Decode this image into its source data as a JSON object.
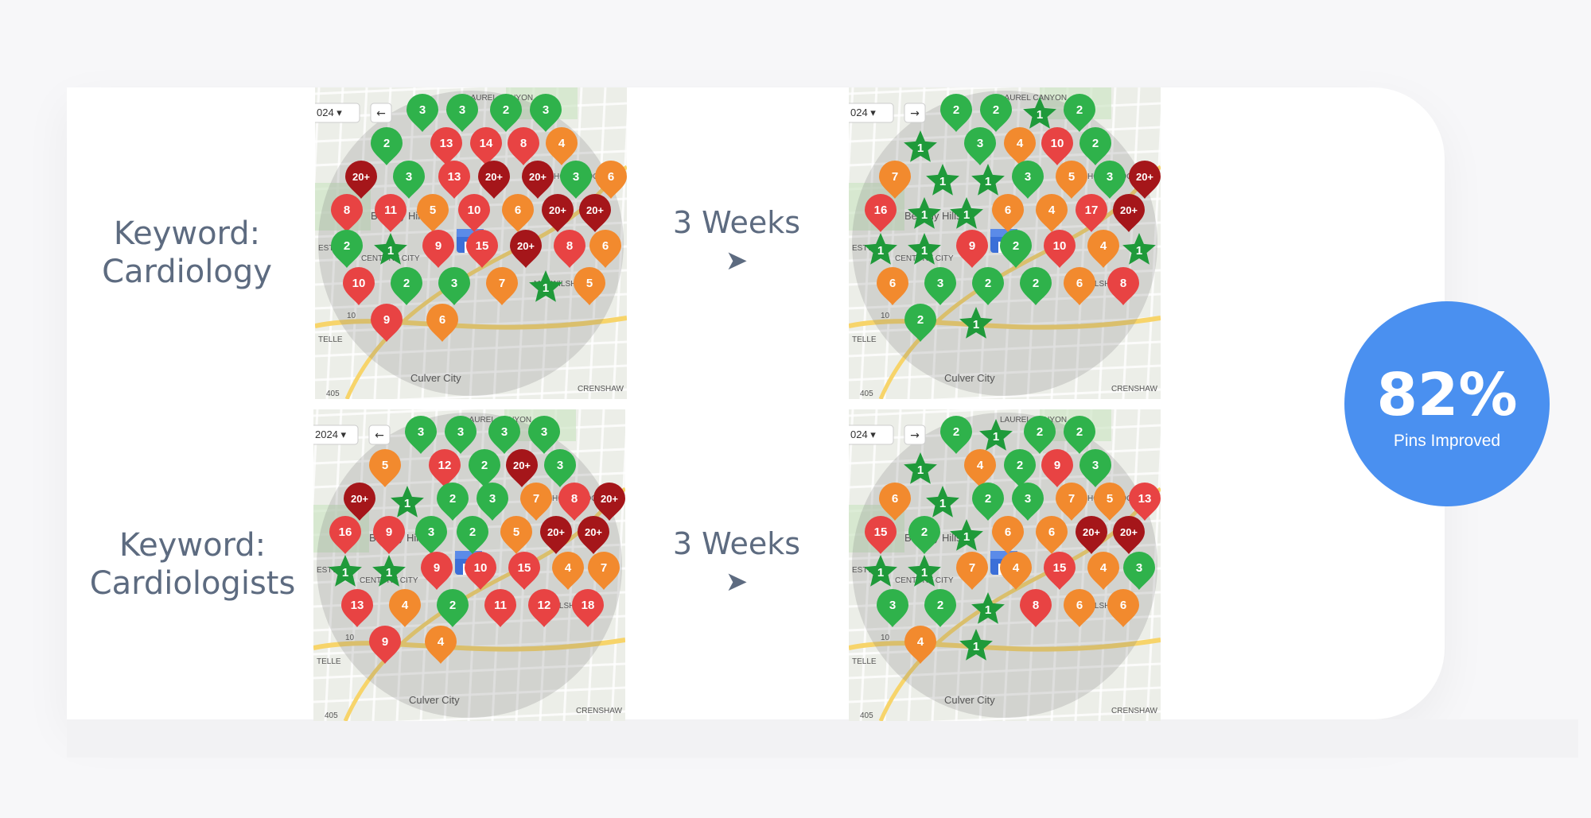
{
  "rows": [
    {
      "keyword_line1": "Keyword:",
      "keyword_line2": "Cardiology",
      "weeks_label": "3 Weeks",
      "arrow": "➤",
      "before": {
        "date_chip": "024 ▾",
        "labels": [
          "LAUREL CANYON",
          "HOLLYWOOD",
          "Beverly Hills",
          "CENTURY CITY",
          "MID-WILSHIRE",
          "Culver City",
          "CRENSHAW",
          "ESTW",
          "TELLE",
          "405",
          "10"
        ],
        "pins": [
          {
            "t": "3",
            "c": "green"
          },
          {
            "t": "3",
            "c": "green"
          },
          {
            "t": "2",
            "c": "green"
          },
          {
            "t": "3",
            "c": "green"
          },
          {
            "t": "2",
            "c": "green"
          },
          {
            "t": "13",
            "c": "red"
          },
          {
            "t": "14",
            "c": "red"
          },
          {
            "t": "8",
            "c": "red"
          },
          {
            "t": "4",
            "c": "orange"
          },
          {
            "t": "20+",
            "c": "dark"
          },
          {
            "t": "3",
            "c": "green"
          },
          {
            "t": "13",
            "c": "red"
          },
          {
            "t": "20+",
            "c": "dark"
          },
          {
            "t": "20+",
            "c": "dark"
          },
          {
            "t": "3",
            "c": "green"
          },
          {
            "t": "6",
            "c": "orange"
          },
          {
            "t": "8",
            "c": "red"
          },
          {
            "t": "11",
            "c": "red"
          },
          {
            "t": "5",
            "c": "orange"
          },
          {
            "t": "10",
            "c": "red"
          },
          {
            "t": "6",
            "c": "orange"
          },
          {
            "t": "20+",
            "c": "dark"
          },
          {
            "t": "20+",
            "c": "dark"
          },
          {
            "t": "2",
            "c": "green"
          },
          {
            "t": "1",
            "c": "star"
          },
          {
            "t": "9",
            "c": "red"
          },
          {
            "t": "15",
            "c": "red"
          },
          {
            "t": "20+",
            "c": "dark"
          },
          {
            "t": "8",
            "c": "red"
          },
          {
            "t": "6",
            "c": "orange"
          },
          {
            "t": "10",
            "c": "red"
          },
          {
            "t": "2",
            "c": "green"
          },
          {
            "t": "3",
            "c": "green"
          },
          {
            "t": "7",
            "c": "orange"
          },
          {
            "t": "1",
            "c": "star"
          },
          {
            "t": "5",
            "c": "orange"
          },
          {
            "t": "9",
            "c": "red"
          },
          {
            "t": "6",
            "c": "orange"
          }
        ]
      },
      "after": {
        "date_chip": "024 ▾",
        "labels": [
          "LAUREL CANYON",
          "HOLLYWOOD",
          "Beverly Hills",
          "CENTURY CITY",
          "MID-WILSHIRE",
          "Culver City",
          "CRENSHAW",
          "ESTW",
          "TELLE",
          "405",
          "10"
        ],
        "pins": [
          {
            "t": "2",
            "c": "green"
          },
          {
            "t": "2",
            "c": "green"
          },
          {
            "t": "1",
            "c": "star"
          },
          {
            "t": "2",
            "c": "green"
          },
          {
            "t": "1",
            "c": "star"
          },
          {
            "t": "3",
            "c": "green"
          },
          {
            "t": "4",
            "c": "orange"
          },
          {
            "t": "10",
            "c": "red"
          },
          {
            "t": "2",
            "c": "green"
          },
          {
            "t": "7",
            "c": "orange"
          },
          {
            "t": "1",
            "c": "star"
          },
          {
            "t": "1",
            "c": "star"
          },
          {
            "t": "3",
            "c": "green"
          },
          {
            "t": "5",
            "c": "orange"
          },
          {
            "t": "3",
            "c": "green"
          },
          {
            "t": "20+",
            "c": "dark"
          },
          {
            "t": "16",
            "c": "red"
          },
          {
            "t": "1",
            "c": "star"
          },
          {
            "t": "1",
            "c": "star"
          },
          {
            "t": "6",
            "c": "orange"
          },
          {
            "t": "4",
            "c": "orange"
          },
          {
            "t": "17",
            "c": "red"
          },
          {
            "t": "20+",
            "c": "dark"
          },
          {
            "t": "1",
            "c": "star"
          },
          {
            "t": "1",
            "c": "star"
          },
          {
            "t": "9",
            "c": "red"
          },
          {
            "t": "2",
            "c": "green"
          },
          {
            "t": "10",
            "c": "red"
          },
          {
            "t": "4",
            "c": "orange"
          },
          {
            "t": "1",
            "c": "star"
          },
          {
            "t": "6",
            "c": "orange"
          },
          {
            "t": "3",
            "c": "green"
          },
          {
            "t": "2",
            "c": "green"
          },
          {
            "t": "2",
            "c": "green"
          },
          {
            "t": "6",
            "c": "orange"
          },
          {
            "t": "8",
            "c": "red"
          },
          {
            "t": "2",
            "c": "green"
          },
          {
            "t": "1",
            "c": "star"
          }
        ]
      }
    },
    {
      "keyword_line1": "Keyword:",
      "keyword_line2": "Cardiologists",
      "weeks_label": "3 Weeks",
      "arrow": "➤",
      "before": {
        "date_chip": "2024 ▾",
        "labels": [
          "LAUREL CANYON",
          "HOLLYWOOD",
          "Beverly Hills",
          "CENTURY CITY",
          "MID-WILSHIRE",
          "Culver City",
          "CRENSHAW",
          "ESTW",
          "TELLE",
          "405",
          "10"
        ],
        "pins": [
          {
            "t": "3",
            "c": "green"
          },
          {
            "t": "3",
            "c": "green"
          },
          {
            "t": "3",
            "c": "green"
          },
          {
            "t": "3",
            "c": "green"
          },
          {
            "t": "5",
            "c": "orange"
          },
          {
            "t": "12",
            "c": "red"
          },
          {
            "t": "2",
            "c": "green"
          },
          {
            "t": "20+",
            "c": "dark"
          },
          {
            "t": "3",
            "c": "green"
          },
          {
            "t": "20+",
            "c": "dark"
          },
          {
            "t": "1",
            "c": "star"
          },
          {
            "t": "2",
            "c": "green"
          },
          {
            "t": "3",
            "c": "green"
          },
          {
            "t": "7",
            "c": "orange"
          },
          {
            "t": "8",
            "c": "red"
          },
          {
            "t": "20+",
            "c": "dark"
          },
          {
            "t": "16",
            "c": "red"
          },
          {
            "t": "9",
            "c": "red"
          },
          {
            "t": "3",
            "c": "green"
          },
          {
            "t": "2",
            "c": "green"
          },
          {
            "t": "5",
            "c": "orange"
          },
          {
            "t": "20+",
            "c": "dark"
          },
          {
            "t": "20+",
            "c": "dark"
          },
          {
            "t": "1",
            "c": "star"
          },
          {
            "t": "1",
            "c": "star"
          },
          {
            "t": "9",
            "c": "red"
          },
          {
            "t": "10",
            "c": "red"
          },
          {
            "t": "15",
            "c": "red"
          },
          {
            "t": "4",
            "c": "orange"
          },
          {
            "t": "7",
            "c": "orange"
          },
          {
            "t": "13",
            "c": "red"
          },
          {
            "t": "4",
            "c": "orange"
          },
          {
            "t": "2",
            "c": "green"
          },
          {
            "t": "11",
            "c": "red"
          },
          {
            "t": "12",
            "c": "red"
          },
          {
            "t": "18",
            "c": "red"
          },
          {
            "t": "9",
            "c": "red"
          },
          {
            "t": "4",
            "c": "orange"
          }
        ]
      },
      "after": {
        "date_chip": "024 ▾",
        "labels": [
          "LAUREL CANYON",
          "HOLLYWOOD",
          "Beverly Hills",
          "CENTURY CITY",
          "MID-WILSHIRE",
          "Culver City",
          "CRENSHAW",
          "ESTW",
          "TELLE",
          "405",
          "10"
        ],
        "pins": [
          {
            "t": "2",
            "c": "green"
          },
          {
            "t": "1",
            "c": "star"
          },
          {
            "t": "2",
            "c": "green"
          },
          {
            "t": "2",
            "c": "green"
          },
          {
            "t": "1",
            "c": "star"
          },
          {
            "t": "4",
            "c": "orange"
          },
          {
            "t": "2",
            "c": "green"
          },
          {
            "t": "9",
            "c": "red"
          },
          {
            "t": "3",
            "c": "green"
          },
          {
            "t": "6",
            "c": "orange"
          },
          {
            "t": "1",
            "c": "star"
          },
          {
            "t": "2",
            "c": "green"
          },
          {
            "t": "3",
            "c": "green"
          },
          {
            "t": "7",
            "c": "orange"
          },
          {
            "t": "5",
            "c": "orange"
          },
          {
            "t": "13",
            "c": "red"
          },
          {
            "t": "15",
            "c": "red"
          },
          {
            "t": "2",
            "c": "green"
          },
          {
            "t": "1",
            "c": "star"
          },
          {
            "t": "6",
            "c": "orange"
          },
          {
            "t": "6",
            "c": "orange"
          },
          {
            "t": "20+",
            "c": "dark"
          },
          {
            "t": "20+",
            "c": "dark"
          },
          {
            "t": "1",
            "c": "star"
          },
          {
            "t": "1",
            "c": "star"
          },
          {
            "t": "7",
            "c": "orange"
          },
          {
            "t": "4",
            "c": "orange"
          },
          {
            "t": "15",
            "c": "red"
          },
          {
            "t": "4",
            "c": "orange"
          },
          {
            "t": "3",
            "c": "green"
          },
          {
            "t": "3",
            "c": "green"
          },
          {
            "t": "2",
            "c": "green"
          },
          {
            "t": "1",
            "c": "star"
          },
          {
            "t": "8",
            "c": "red"
          },
          {
            "t": "6",
            "c": "orange"
          },
          {
            "t": "6",
            "c": "orange"
          },
          {
            "t": "4",
            "c": "orange"
          },
          {
            "t": "1",
            "c": "star"
          }
        ]
      }
    }
  ],
  "stat": {
    "value": "82%",
    "label": "Pins Improved",
    "color": "#4a90f0"
  },
  "pin_colors": {
    "green": "#2fb24b",
    "red": "#e84343",
    "orange": "#f28a2e",
    "dark": "#a5161a",
    "star": "#1f9a3a"
  }
}
